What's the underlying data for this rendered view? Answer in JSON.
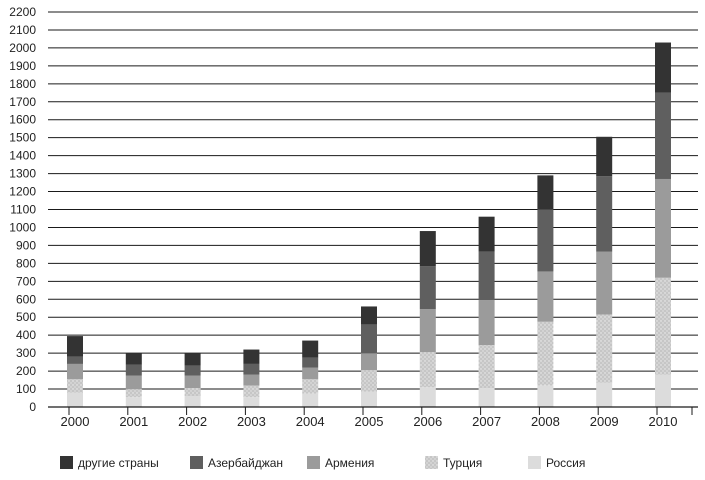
{
  "chart_data": {
    "type": "bar",
    "stacked": true,
    "categories": [
      "2000",
      "2001",
      "2002",
      "2003",
      "2004",
      "2005",
      "2006",
      "2007",
      "2008",
      "2009",
      "2010"
    ],
    "series": [
      {
        "name": "Россия",
        "color": "#dcdcdc",
        "pattern": "none",
        "values": [
          80,
          55,
          60,
          55,
          75,
          85,
          110,
          105,
          120,
          135,
          180
        ]
      },
      {
        "name": "Турция",
        "color": "#c9c9c9",
        "pattern": "dotted",
        "values": [
          75,
          45,
          45,
          65,
          80,
          120,
          195,
          240,
          355,
          380,
          540
        ]
      },
      {
        "name": "Армения",
        "color": "#9b9b9b",
        "pattern": "none",
        "values": [
          85,
          75,
          70,
          60,
          65,
          95,
          240,
          250,
          280,
          350,
          550
        ]
      },
      {
        "name": "Азербайджан",
        "color": "#5f5f5f",
        "pattern": "none",
        "values": [
          40,
          60,
          55,
          60,
          55,
          160,
          240,
          270,
          345,
          420,
          480
        ]
      },
      {
        "name": "другие страны",
        "color": "#333333",
        "pattern": "none",
        "values": [
          115,
          65,
          70,
          80,
          95,
          100,
          195,
          195,
          190,
          220,
          280
        ]
      }
    ],
    "yticks": [
      "0",
      "100",
      "200",
      "300",
      "400",
      "500",
      "600",
      "700",
      "800",
      "900",
      "1000",
      "1100",
      "1200",
      "1300",
      "1400",
      "1500",
      "1600",
      "1700",
      "1800",
      "1900",
      "2000",
      "2100",
      "2200"
    ],
    "ylim": [
      0,
      2200
    ],
    "grid": true,
    "legend_position": "bottom",
    "legend_order": [
      "другие страны",
      "Азербайджан",
      "Армения",
      "Турция",
      "Россия"
    ]
  }
}
